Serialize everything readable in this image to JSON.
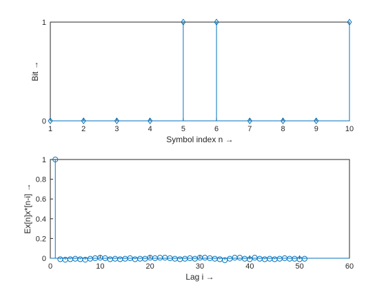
{
  "chart_data": [
    {
      "type": "stem",
      "xlabel": "Symbol index n →",
      "ylabel": "Bit →",
      "xlim": [
        1,
        10
      ],
      "ylim": [
        0,
        1
      ],
      "xticks": [
        1,
        2,
        3,
        4,
        5,
        6,
        7,
        8,
        9,
        10
      ],
      "yticks": [
        0,
        1
      ],
      "color": "#0072bd",
      "marker": "diamond",
      "x": [
        1,
        2,
        3,
        4,
        5,
        6,
        7,
        8,
        9,
        10
      ],
      "y": [
        0,
        0,
        0,
        0,
        1,
        1,
        0,
        0,
        0,
        1
      ]
    },
    {
      "type": "stem",
      "xlabel": "Lag i →",
      "ylabel": "Ex[n]x*[n-i] →",
      "xlim": [
        0,
        60
      ],
      "ylim": [
        0,
        1
      ],
      "xticks": [
        0,
        10,
        20,
        30,
        40,
        50,
        60
      ],
      "yticks": [
        0,
        0.2,
        0.4,
        0.6,
        0.8,
        1
      ],
      "color": "#0072bd",
      "marker": "circle",
      "x": [
        1,
        2,
        3,
        4,
        5,
        6,
        7,
        8,
        9,
        10,
        11,
        12,
        13,
        14,
        15,
        16,
        17,
        18,
        19,
        20,
        21,
        22,
        23,
        24,
        25,
        26,
        27,
        28,
        29,
        30,
        31,
        32,
        33,
        34,
        35,
        36,
        37,
        38,
        39,
        40,
        41,
        42,
        43,
        44,
        45,
        46,
        47,
        48,
        49,
        50,
        51
      ],
      "y": [
        1,
        -0.01,
        -0.015,
        -0.01,
        -0.005,
        -0.01,
        -0.015,
        -0.005,
        0.0,
        0.005,
        0.0,
        -0.01,
        -0.005,
        -0.01,
        -0.005,
        0.0,
        -0.01,
        -0.005,
        -0.005,
        0.005,
        0.0,
        0.005,
        0.005,
        0.0,
        -0.005,
        -0.01,
        -0.005,
        0.0,
        -0.005,
        0.005,
        0.005,
        0.0,
        -0.005,
        -0.01,
        -0.02,
        -0.005,
        0.005,
        0.005,
        -0.005,
        -0.01,
        0.005,
        -0.005,
        -0.01,
        -0.005,
        -0.01,
        -0.005,
        0.0,
        -0.005,
        -0.005,
        -0.01,
        -0.005
      ]
    }
  ]
}
